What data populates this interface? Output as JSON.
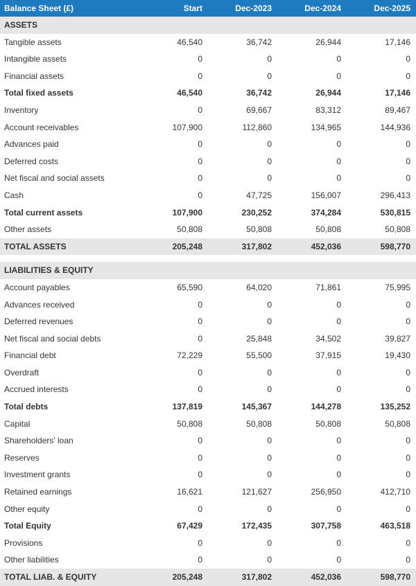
{
  "header": {
    "title": "Balance Sheet (£)",
    "columns": [
      "Start",
      "Dec-2023",
      "Dec-2024",
      "Dec-2025"
    ]
  },
  "colors": {
    "header_bg": "#1f7bbf",
    "header_fg": "#ffffff",
    "section_bg": "#e6e6e6",
    "text": "#333333"
  },
  "rows": [
    {
      "type": "section",
      "label": "ASSETS",
      "values": [
        "",
        "",
        "",
        ""
      ]
    },
    {
      "type": "line",
      "label": "Tangible assets",
      "values": [
        "46,540",
        "36,742",
        "26,944",
        "17,146"
      ]
    },
    {
      "type": "line",
      "label": "Intangible assets",
      "values": [
        "0",
        "0",
        "0",
        "0"
      ]
    },
    {
      "type": "line",
      "label": "Financial assets",
      "values": [
        "0",
        "0",
        "0",
        "0"
      ]
    },
    {
      "type": "subtotal",
      "label": "Total fixed assets",
      "values": [
        "46,540",
        "36,742",
        "26,944",
        "17,146"
      ]
    },
    {
      "type": "line",
      "label": "Inventory",
      "values": [
        "0",
        "69,667",
        "83,312",
        "89,467"
      ]
    },
    {
      "type": "line",
      "label": "Account receivables",
      "values": [
        "107,900",
        "112,860",
        "134,965",
        "144,936"
      ]
    },
    {
      "type": "line",
      "label": "Advances paid",
      "values": [
        "0",
        "0",
        "0",
        "0"
      ]
    },
    {
      "type": "line",
      "label": "Deferred costs",
      "values": [
        "0",
        "0",
        "0",
        "0"
      ]
    },
    {
      "type": "line",
      "label": "Net fiscal and social assets",
      "values": [
        "0",
        "0",
        "0",
        "0"
      ]
    },
    {
      "type": "line",
      "label": "Cash",
      "values": [
        "0",
        "47,725",
        "156,007",
        "296,413"
      ]
    },
    {
      "type": "subtotal",
      "label": "Total current assets",
      "values": [
        "107,900",
        "230,252",
        "374,284",
        "530,815"
      ]
    },
    {
      "type": "line",
      "label": "Other assets",
      "values": [
        "50,808",
        "50,808",
        "50,808",
        "50,808"
      ]
    },
    {
      "type": "grand",
      "label": "TOTAL ASSETS",
      "values": [
        "205,248",
        "317,802",
        "452,036",
        "598,770"
      ]
    },
    {
      "type": "spacer",
      "label": "",
      "values": [
        "",
        "",
        "",
        ""
      ]
    },
    {
      "type": "section",
      "label": "LIABILITIES & EQUITY",
      "values": [
        "",
        "",
        "",
        ""
      ]
    },
    {
      "type": "line",
      "label": "Account payables",
      "values": [
        "65,590",
        "64,020",
        "71,861",
        "75,995"
      ]
    },
    {
      "type": "line",
      "label": "Advances received",
      "values": [
        "0",
        "0",
        "0",
        "0"
      ]
    },
    {
      "type": "line",
      "label": "Deferred revenues",
      "values": [
        "0",
        "0",
        "0",
        "0"
      ]
    },
    {
      "type": "line",
      "label": "Net fiscal and social debts",
      "values": [
        "0",
        "25,848",
        "34,502",
        "39,827"
      ]
    },
    {
      "type": "line",
      "label": "Financial debt",
      "values": [
        "72,229",
        "55,500",
        "37,915",
        "19,430"
      ]
    },
    {
      "type": "line",
      "label": "Overdraft",
      "values": [
        "0",
        "0",
        "0",
        "0"
      ]
    },
    {
      "type": "line",
      "label": "Accrued interests",
      "values": [
        "0",
        "0",
        "0",
        "0"
      ]
    },
    {
      "type": "subtotal",
      "label": "Total debts",
      "values": [
        "137,819",
        "145,367",
        "144,278",
        "135,252"
      ]
    },
    {
      "type": "line",
      "label": "Capital",
      "values": [
        "50,808",
        "50,808",
        "50,808",
        "50,808"
      ]
    },
    {
      "type": "line",
      "label": "Shareholders' loan",
      "values": [
        "0",
        "0",
        "0",
        "0"
      ]
    },
    {
      "type": "line",
      "label": "Reserves",
      "values": [
        "0",
        "0",
        "0",
        "0"
      ]
    },
    {
      "type": "line",
      "label": "Investment grants",
      "values": [
        "0",
        "0",
        "0",
        "0"
      ]
    },
    {
      "type": "line",
      "label": "Retained earnings",
      "values": [
        "16,621",
        "121,627",
        "256,950",
        "412,710"
      ]
    },
    {
      "type": "line",
      "label": "Other equity",
      "values": [
        "0",
        "0",
        "0",
        "0"
      ]
    },
    {
      "type": "subtotal",
      "label": "Total Equity",
      "values": [
        "67,429",
        "172,435",
        "307,758",
        "463,518"
      ]
    },
    {
      "type": "line",
      "label": "Provisions",
      "values": [
        "0",
        "0",
        "0",
        "0"
      ]
    },
    {
      "type": "line",
      "label": "Other liabilities",
      "values": [
        "0",
        "0",
        "0",
        "0"
      ]
    },
    {
      "type": "grand",
      "label": "TOTAL LIAB. & EQUITY",
      "values": [
        "205,248",
        "317,802",
        "452,036",
        "598,770"
      ]
    }
  ]
}
